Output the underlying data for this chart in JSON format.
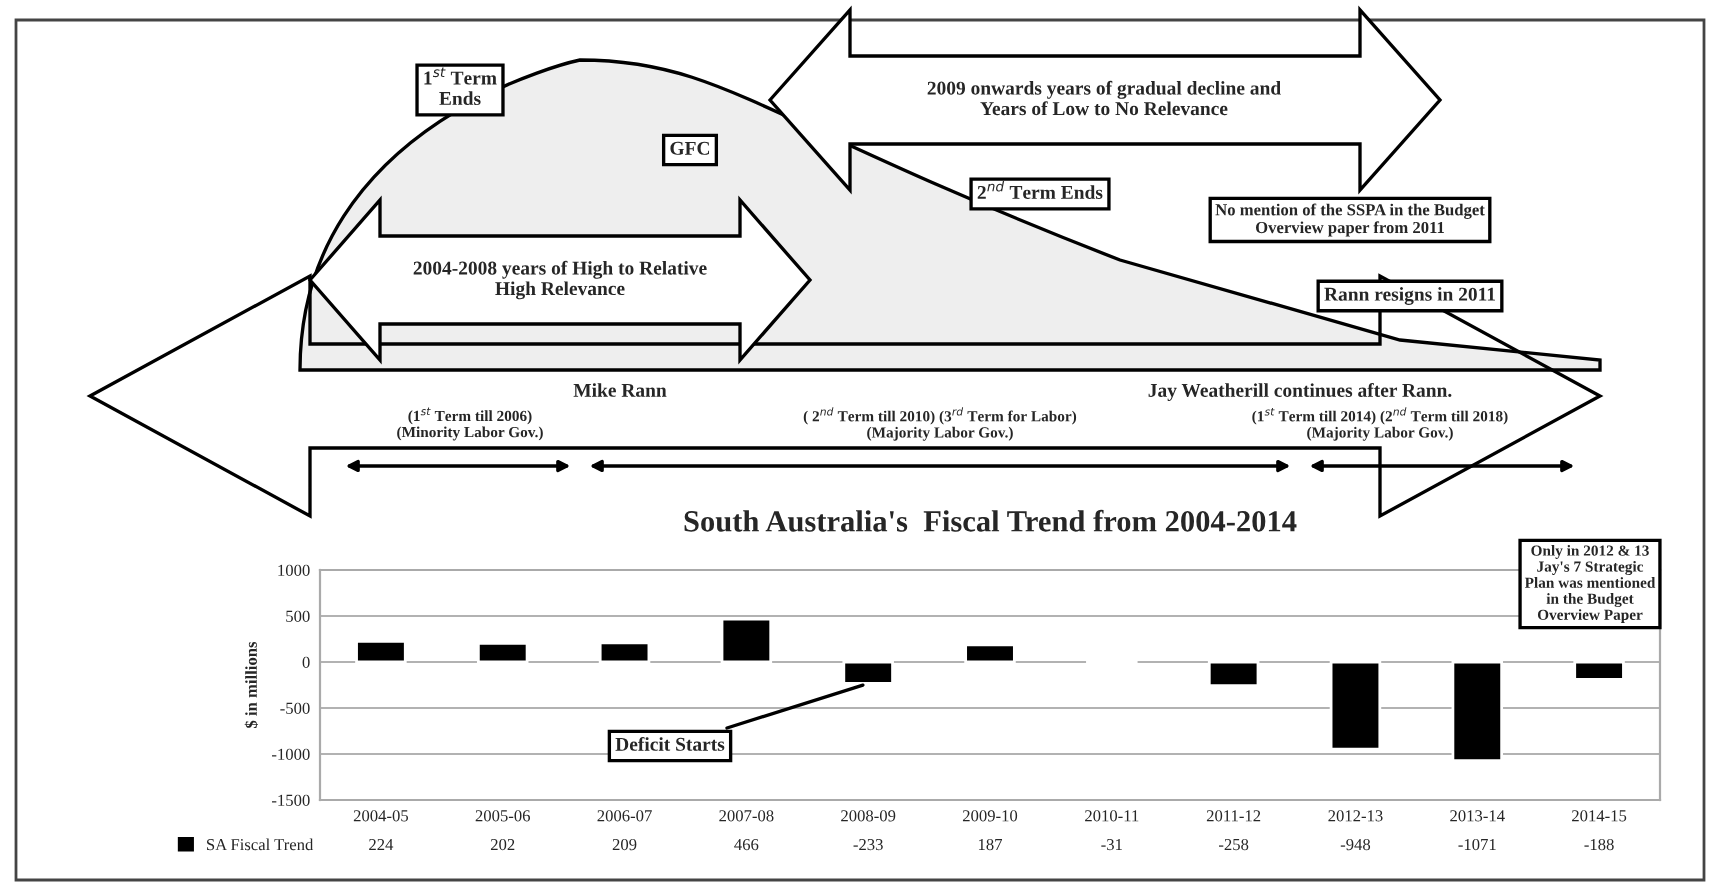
{
  "chart_data": {
    "type": "bar",
    "title": "South Australia's  Fiscal Trend from 2004-2014",
    "ylabel": "$ in millions",
    "categories": [
      "2004-05",
      "2005-06",
      "2006-07",
      "2007-08",
      "2008-09",
      "2009-10",
      "2010-11",
      "2011-12",
      "2012-13",
      "2013-14",
      "2014-15"
    ],
    "series": [
      {
        "name": "SA Fiscal Trend",
        "color": "#000000",
        "values": [
          224,
          202,
          209,
          466,
          -233,
          187,
          -31,
          -258,
          -948,
          -1071,
          -188
        ]
      }
    ],
    "ylim": [
      -1500,
      1000
    ],
    "yticks": [
      -1500,
      -1000,
      -500,
      0,
      500,
      1000
    ],
    "grid": "y",
    "legend": "bottom",
    "data_labels": true,
    "annotations": [
      "1$^{st}$ Term\nEnds",
      "GFC",
      "2009 onwards years of gradual decline and\nYears of Low to No Relevance",
      "2$^{nd}$ Term Ends",
      "No mention of the SSPA in the Budget\nOverview paper from 2011",
      "Rann resigns in 2011",
      "2004-2008 years of High to Relative\nHigh Relevance",
      "Mike Rann",
      "(1$^{st}$ Term till 2006)\n(Minority Labor Gov.)",
      "( 2$^{nd}$ Term till 2010) (3$^{rd}$ Term for Labor)\n(Majority Labor Gov.)",
      "Jay Weatherill continues after Rann.",
      "(1$^{st}$ Term till 2014) (2$^{nd}$ Term till 2018)\n(Majority Labor Gov.)",
      {
        "text": "Deficit Starts",
        "x": "2008-09",
        "y": -233
      },
      "Only in 2012 & 13\nJay's 7 Strategic\nPlan was mentioned\nin the Budget\nOverview Paper"
    ]
  }
}
